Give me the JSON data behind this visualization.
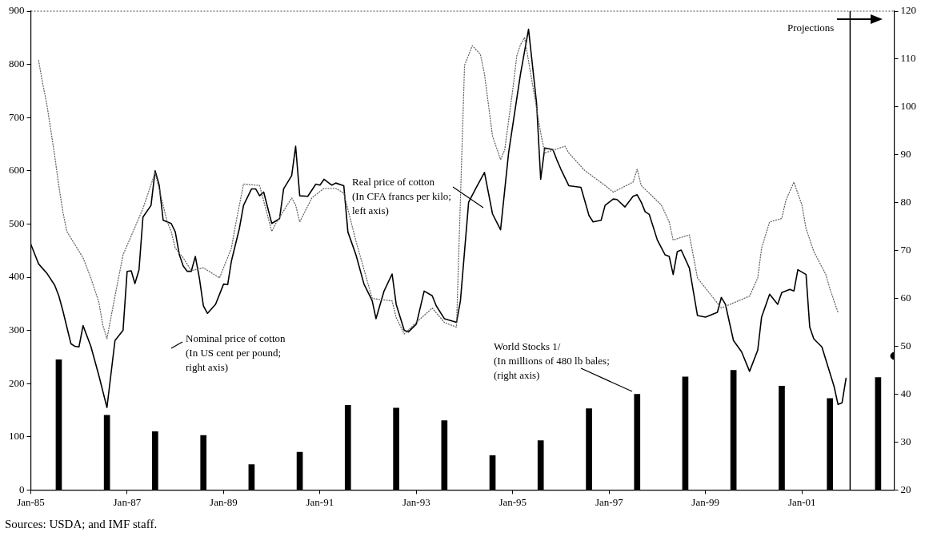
{
  "chart_data": {
    "type": "line",
    "xlim": [
      "1985-01",
      "2002-12"
    ],
    "xticks": [
      {
        "value": "1985-01",
        "label": "Jan-85"
      },
      {
        "value": "1987-01",
        "label": "Jan-87"
      },
      {
        "value": "1989-01",
        "label": "Jan-89"
      },
      {
        "value": "1991-01",
        "label": "Jan-91"
      },
      {
        "value": "1993-01",
        "label": "Jan-93"
      },
      {
        "value": "1995-01",
        "label": "Jan-95"
      },
      {
        "value": "1997-01",
        "label": "Jan-97"
      },
      {
        "value": "1999-01",
        "label": "Jan-99"
      },
      {
        "value": "2001-01",
        "label": "Jan-01"
      }
    ],
    "ylim": [
      0,
      900
    ],
    "yticks": [
      0,
      100,
      200,
      300,
      400,
      500,
      600,
      700,
      800,
      900
    ],
    "y2lim": [
      20,
      120
    ],
    "y2ticks": [
      20,
      30,
      40,
      50,
      60,
      70,
      80,
      90,
      100,
      110,
      120
    ],
    "grid": false,
    "legend": false,
    "series": [
      {
        "type": "bar",
        "axis": "y2",
        "color": "#000000",
        "x": [
          "1985-08",
          "1986-08",
          "1987-08",
          "1988-08",
          "1989-08",
          "1990-08",
          "1991-08",
          "1992-08",
          "1993-08",
          "1994-08",
          "1995-08",
          "1996-08",
          "1997-08",
          "1998-08",
          "1999-08",
          "2000-08",
          "2001-08",
          "2002-08"
        ],
        "values": [
          47.2,
          35.6,
          32.2,
          31.4,
          25.3,
          27.9,
          37.7,
          37.1,
          34.5,
          27.2,
          30.3,
          37.0,
          40.0,
          43.6,
          45.0,
          41.7,
          39.1,
          43.5
        ]
      },
      {
        "axis": "y2",
        "color": "#666666",
        "line_style": "dotted",
        "marker": "none",
        "x": [
          "1985-03",
          "1985-04",
          "1985-05",
          "1985-06",
          "1985-07",
          "1985-08",
          "1985-09",
          "1985-10",
          "1986-02",
          "1986-04",
          "1986-06",
          "1986-07",
          "1986-08",
          "1986-10",
          "1986-12",
          "1987-05",
          "1987-08",
          "1987-11",
          "1987-12",
          "1988-01",
          "1988-03",
          "1988-05",
          "1988-08",
          "1988-12",
          "1989-03",
          "1989-04",
          "1989-06",
          "1989-10",
          "1990-01",
          "1990-02",
          "1990-06",
          "1990-07",
          "1990-08",
          "1990-11",
          "1991-02",
          "1991-05",
          "1991-07",
          "1991-10",
          "1992-02",
          "1992-07",
          "1992-08",
          "1992-10",
          "1993-01",
          "1993-05",
          "1993-08",
          "1993-11",
          "1994-01",
          "1994-03",
          "1994-05",
          "1994-06",
          "1994-08",
          "1994-10",
          "1994-11",
          "1995-01",
          "1995-02",
          "1995-03",
          "1995-04",
          "1995-08",
          "1995-09",
          "1996-02",
          "1996-03",
          "1996-07",
          "1996-12",
          "1997-02",
          "1997-07",
          "1997-08",
          "1997-09",
          "1998-02",
          "1998-04",
          "1998-05",
          "1998-09",
          "1998-11",
          "1999-05",
          "1999-12",
          "2000-02",
          "2000-03",
          "2000-05",
          "2000-08",
          "2000-09",
          "2000-11",
          "2001-01",
          "2001-02",
          "2001-04",
          "2001-07",
          "2001-08",
          "2001-10"
        ],
        "values": [
          109.7,
          104.9,
          100.8,
          95.3,
          89.8,
          83.6,
          78.1,
          74,
          68.5,
          64.3,
          59.2,
          54.4,
          51.6,
          60.5,
          69.1,
          78.8,
          86.3,
          76,
          74,
          70.5,
          68.5,
          65.8,
          66.4,
          64.3,
          70.5,
          75.3,
          83.9,
          83.6,
          74,
          75.7,
          81,
          79.5,
          76,
          81,
          83,
          83,
          82,
          72,
          60,
          59.5,
          56,
          52.6,
          55,
          58,
          55,
          54,
          108.7,
          112.8,
          111,
          106.9,
          93.9,
          89,
          91,
          103.5,
          110.7,
          113,
          114.5,
          94.6,
          90.4,
          91.8,
          90.4,
          86.7,
          83.6,
          82.2,
          84.3,
          87,
          83.6,
          79.5,
          76,
          72.2,
          73.3,
          64.3,
          58,
          60.5,
          64.3,
          70.5,
          76,
          76.7,
          80.5,
          84.3,
          79.5,
          74.6,
          69.8,
          65,
          62,
          57.1
        ]
      },
      {
        "color": "#000000",
        "line_style": "solid",
        "marker": "none",
        "x": [
          "1985-01",
          "1985-03",
          "1985-05",
          "1985-07",
          "1985-08",
          "1985-09",
          "1985-11",
          "1985-12",
          "1986-01",
          "1986-02",
          "1986-04",
          "1986-06",
          "1986-08",
          "1986-10",
          "1986-12",
          "1987-01",
          "1987-02",
          "1987-03",
          "1987-04",
          "1987-05",
          "1987-07",
          "1987-08",
          "1987-09",
          "1987-10",
          "1987-12",
          "1988-01",
          "1988-02",
          "1988-03",
          "1988-04",
          "1988-05",
          "1988-06",
          "1988-07",
          "1988-08",
          "1988-09",
          "1988-11",
          "1989-01",
          "1989-02",
          "1989-03",
          "1989-05",
          "1989-06",
          "1989-08",
          "1989-09",
          "1989-10",
          "1989-11",
          "1990-01",
          "1990-03",
          "1990-04",
          "1990-06",
          "1990-07",
          "1990-08",
          "1990-10",
          "1990-12",
          "1991-01",
          "1991-02",
          "1991-04",
          "1991-05",
          "1991-07",
          "1991-08",
          "1991-10",
          "1991-12",
          "1992-02",
          "1992-03",
          "1992-05",
          "1992-07",
          "1992-08",
          "1992-10",
          "1992-11",
          "1993-01",
          "1993-03",
          "1993-05",
          "1993-06",
          "1993-08",
          "1993-11",
          "1993-12",
          "1994-02",
          "1994-04",
          "1994-06",
          "1994-08",
          "1994-10",
          "1994-12",
          "1995-03",
          "1995-05",
          "1995-07",
          "1995-08",
          "1995-09",
          "1995-11",
          "1995-12",
          "1996-01",
          "1996-03",
          "1996-06",
          "1996-08",
          "1996-09",
          "1996-11",
          "1996-12",
          "1997-02",
          "1997-03",
          "1997-05",
          "1997-07",
          "1997-08",
          "1997-09",
          "1997-10",
          "1997-11",
          "1998-01",
          "1998-03",
          "1998-04",
          "1998-05",
          "1998-06",
          "1998-07",
          "1998-09",
          "1998-11",
          "1999-01",
          "1999-04",
          "1999-05",
          "1999-06",
          "1999-08",
          "1999-10",
          "1999-12",
          "2000-02",
          "2000-03",
          "2000-05",
          "2000-07",
          "2000-08",
          "2000-10",
          "2000-11",
          "2000-12",
          "2001-02",
          "2001-03",
          "2001-04",
          "2001-06",
          "2001-09",
          "2001-10",
          "2001-11",
          "2001-12"
        ],
        "values": [
          462,
          425,
          408,
          385,
          365,
          337,
          275,
          270,
          269,
          309,
          270,
          215,
          155,
          281,
          300,
          411,
          412,
          388,
          414,
          513,
          535,
          600,
          573,
          507,
          501,
          485,
          442,
          421,
          411,
          411,
          439,
          399,
          346,
          332,
          349,
          387,
          386,
          430,
          492,
          535,
          566,
          566,
          553,
          560,
          501,
          510,
          566,
          591,
          646,
          553,
          552,
          575,
          573,
          584,
          573,
          577,
          572,
          485,
          442,
          387,
          356,
          322,
          374,
          406,
          349,
          300,
          297,
          312,
          374,
          365,
          346,
          322,
          315,
          356,
          541,
          569,
          597,
          519,
          489,
          634,
          782,
          866,
          727,
          584,
          643,
          640,
          621,
          603,
          572,
          569,
          516,
          504,
          507,
          535,
          547,
          546,
          532,
          552,
          555,
          541,
          523,
          518,
          470,
          442,
          439,
          405,
          448,
          451,
          417,
          328,
          325,
          334,
          362,
          349,
          281,
          260,
          223,
          263,
          325,
          368,
          349,
          371,
          377,
          374,
          414,
          405,
          306,
          284,
          269,
          195,
          161,
          164,
          210
        ]
      },
      {
        "type": "scatter",
        "axis": "y2",
        "color": "#000000",
        "marker": "circle",
        "x": [
          "2002-12"
        ],
        "values": [
          48
        ]
      }
    ],
    "ref_lines": [
      {
        "axis": "x",
        "value": "2002-01",
        "label": "Projections",
        "color": "#000000"
      }
    ],
    "annotations": [
      "Real price of cotton\n(In CFA francs per kilo;\nleft axis)",
      "Nominal price of cotton\n(In US cent per pound;\nright axis)",
      "World Stocks 1/\n(In millions of 480 lb bales;\n(right axis)",
      "Sources: USDA; and IMF staff."
    ]
  }
}
